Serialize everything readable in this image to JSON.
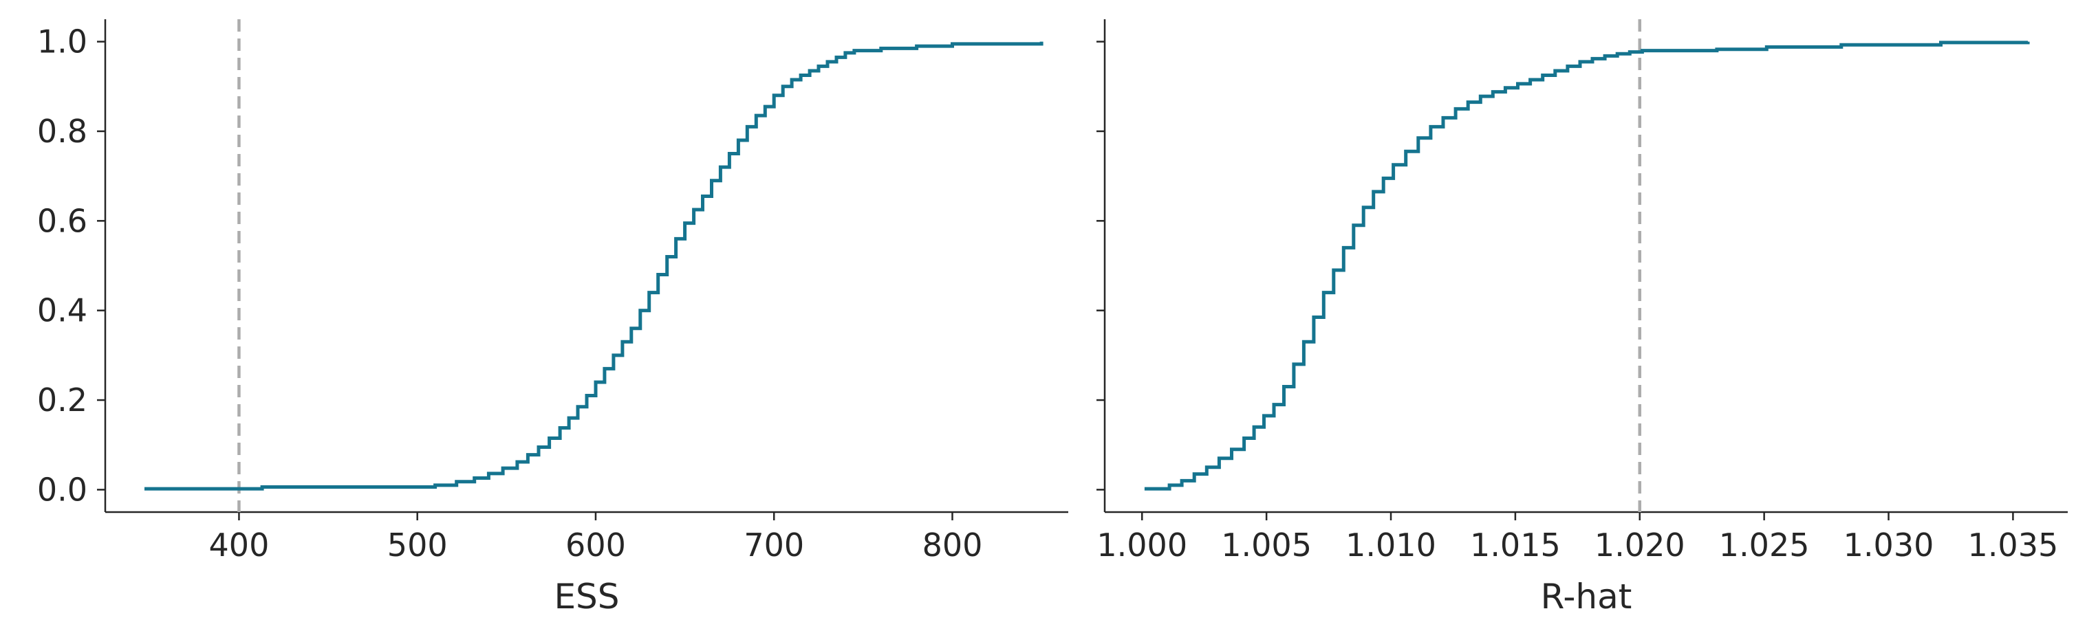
{
  "figure": {
    "line_color": "#15748f",
    "reference_color": "#acacac"
  },
  "chart_data": [
    {
      "type": "line",
      "subtype": "ecdf-step",
      "title": "",
      "xlabel": "ESS",
      "ylabel": "",
      "xlim": [
        325,
        865
      ],
      "ylim": [
        -0.05,
        1.05
      ],
      "xticks": [
        400,
        500,
        600,
        700,
        800
      ],
      "xtick_labels": [
        "400",
        "500",
        "600",
        "700",
        "800"
      ],
      "yticks": [
        0.0,
        0.2,
        0.4,
        0.6,
        0.8,
        1.0
      ],
      "ytick_labels": [
        "0.0",
        "0.2",
        "0.4",
        "0.6",
        "0.8",
        "1.0"
      ],
      "grid": false,
      "reference_line": {
        "axis": "x",
        "value": 400,
        "style": "dashed"
      },
      "series": [
        {
          "x": [
            347,
            413,
            510,
            522,
            532,
            540,
            548,
            556,
            562,
            568,
            574,
            580,
            585,
            590,
            595,
            600,
            605,
            610,
            615,
            620,
            625,
            630,
            635,
            640,
            645,
            650,
            655,
            660,
            665,
            670,
            675,
            680,
            685,
            690,
            695,
            700,
            705,
            710,
            715,
            720,
            725,
            730,
            735,
            740,
            745,
            760,
            780,
            800,
            850
          ],
          "y": [
            0.002,
            0.006,
            0.01,
            0.018,
            0.026,
            0.036,
            0.048,
            0.062,
            0.078,
            0.095,
            0.115,
            0.138,
            0.16,
            0.185,
            0.21,
            0.24,
            0.27,
            0.3,
            0.33,
            0.36,
            0.4,
            0.44,
            0.48,
            0.52,
            0.56,
            0.595,
            0.625,
            0.655,
            0.69,
            0.72,
            0.75,
            0.78,
            0.81,
            0.835,
            0.855,
            0.88,
            0.9,
            0.915,
            0.925,
            0.935,
            0.945,
            0.955,
            0.965,
            0.975,
            0.98,
            0.985,
            0.99,
            0.995,
            1.0
          ]
        }
      ]
    },
    {
      "type": "line",
      "subtype": "ecdf-step",
      "title": "",
      "xlabel": "R-hat",
      "ylabel": "",
      "xlim": [
        0.9985,
        1.0372
      ],
      "ylim": [
        -0.05,
        1.05
      ],
      "xticks": [
        1.0,
        1.005,
        1.01,
        1.015,
        1.02,
        1.025,
        1.03,
        1.035
      ],
      "xtick_labels": [
        "1.000",
        "1.005",
        "1.010",
        "1.015",
        "1.020",
        "1.025",
        "1.030",
        "1.035"
      ],
      "yticks": [
        0.0,
        0.2,
        0.4,
        0.6,
        0.8,
        1.0
      ],
      "ytick_labels": [
        "",
        "",
        "",
        "",
        "",
        ""
      ],
      "grid": false,
      "reference_line": {
        "axis": "x",
        "value": 1.02,
        "style": "dashed"
      },
      "series": [
        {
          "x": [
            1.0001,
            1.0011,
            1.0016,
            1.0021,
            1.0026,
            1.0031,
            1.0036,
            1.0041,
            1.0045,
            1.0049,
            1.0053,
            1.0057,
            1.0061,
            1.0065,
            1.0069,
            1.0073,
            1.0077,
            1.0081,
            1.0085,
            1.0089,
            1.0093,
            1.0097,
            1.0101,
            1.0106,
            1.0111,
            1.0116,
            1.0121,
            1.0126,
            1.0131,
            1.0136,
            1.0141,
            1.0146,
            1.0151,
            1.0156,
            1.0161,
            1.0166,
            1.0171,
            1.0176,
            1.0181,
            1.0186,
            1.0191,
            1.0196,
            1.0201,
            1.0231,
            1.0251,
            1.0281,
            1.0321,
            1.0356
          ],
          "y": [
            0.002,
            0.01,
            0.02,
            0.035,
            0.05,
            0.07,
            0.09,
            0.115,
            0.14,
            0.165,
            0.19,
            0.23,
            0.28,
            0.33,
            0.385,
            0.44,
            0.49,
            0.54,
            0.59,
            0.63,
            0.665,
            0.695,
            0.725,
            0.755,
            0.785,
            0.81,
            0.83,
            0.85,
            0.865,
            0.878,
            0.888,
            0.897,
            0.906,
            0.915,
            0.925,
            0.935,
            0.945,
            0.955,
            0.962,
            0.968,
            0.973,
            0.977,
            0.98,
            0.983,
            0.988,
            0.993,
            0.998,
            1.0
          ]
        }
      ]
    }
  ]
}
